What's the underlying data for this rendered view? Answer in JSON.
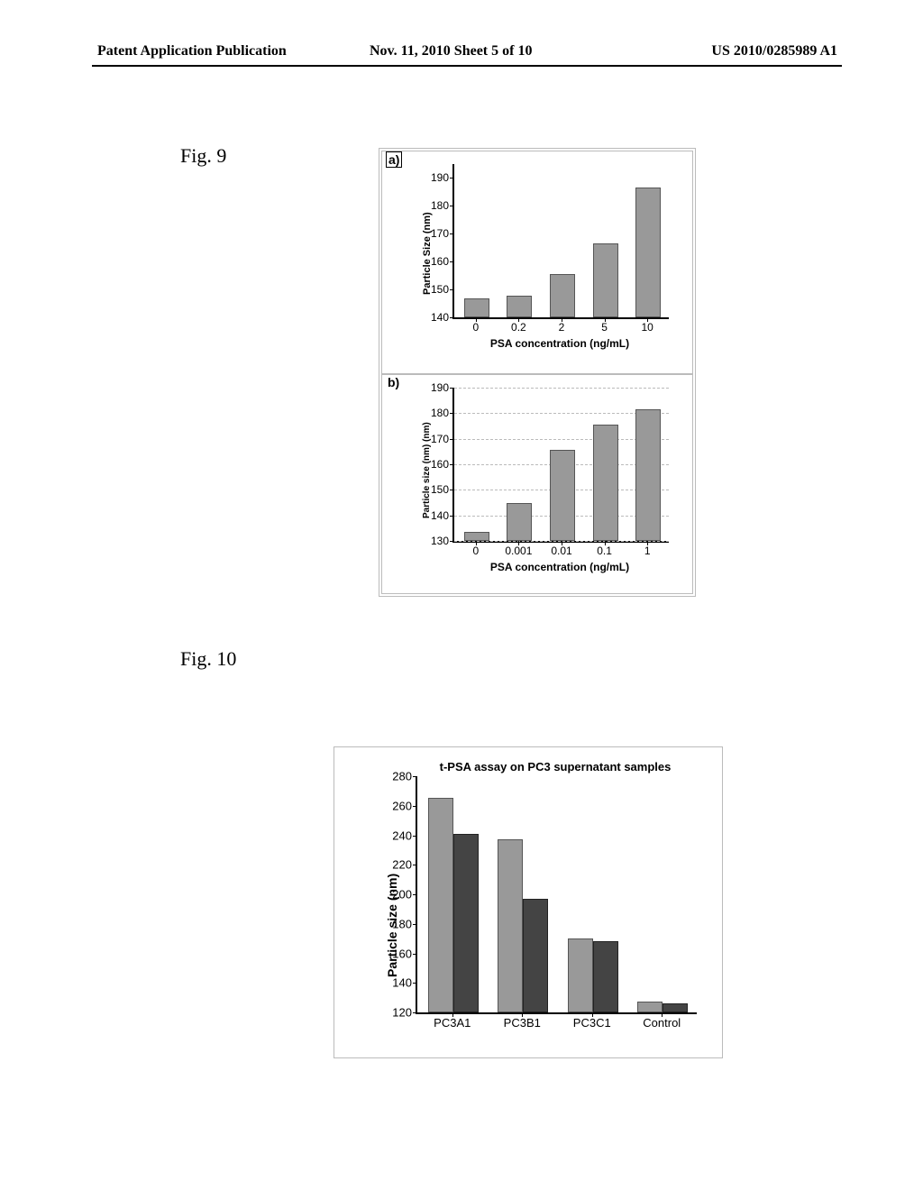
{
  "header": {
    "left": "Patent Application Publication",
    "center": "Nov. 11, 2010  Sheet 5 of 10",
    "right": "US 2010/0285989 A1"
  },
  "fig9": {
    "label": "Fig. 9",
    "panel_a": {
      "letter": "a)",
      "ylabel": "Particle Size (nm)",
      "xlabel": "PSA concentration (ng/mL)",
      "ylim": [
        140,
        195
      ],
      "yticks": [
        140,
        150,
        160,
        170,
        180,
        190
      ],
      "xticks": [
        "0",
        "0.2",
        "2",
        "5",
        "10"
      ],
      "values": [
        146,
        147,
        155,
        166,
        186
      ],
      "bar_color": "#999999",
      "ylabel_fontsize": 11,
      "tick_fontsize": 12,
      "xlabel_fontsize": 12
    },
    "panel_b": {
      "letter": "b)",
      "ylabel": "Particle size (nm) (nm)",
      "xlabel": "PSA concentration (ng/mL)",
      "ylim": [
        130,
        190
      ],
      "yticks": [
        130,
        140,
        150,
        160,
        170,
        180,
        190
      ],
      "xticks": [
        "0",
        "0.001",
        "0.01",
        "0.1",
        "1"
      ],
      "values": [
        133,
        144,
        165,
        175,
        181
      ],
      "bar_color": "#999999",
      "ylabel_fontsize": 10,
      "tick_fontsize": 12,
      "xlabel_fontsize": 12
    }
  },
  "fig10": {
    "label": "Fig. 10",
    "title": "t-PSA assay on PC3 supernatant samples",
    "ylabel": "Particle size (nm)",
    "ylim": [
      120,
      280
    ],
    "yticks": [
      120,
      140,
      160,
      180,
      200,
      220,
      240,
      260,
      280
    ],
    "xticks": [
      "PC3A1",
      "PC3B1",
      "PC3C1",
      "Control"
    ],
    "series1": [
      264,
      236,
      169,
      126
    ],
    "series2": [
      240,
      196,
      167,
      125
    ],
    "series1_color": "#999999",
    "series2_color": "#444444",
    "ylabel_fontsize": 14,
    "tick_fontsize": 13
  }
}
